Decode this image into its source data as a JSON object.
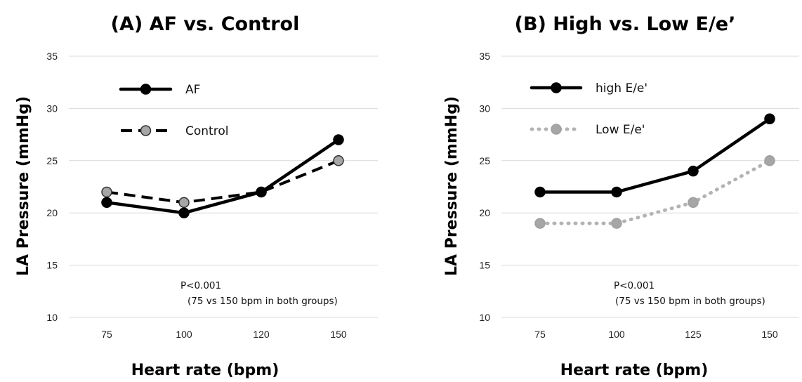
{
  "chart_data": [
    {
      "type": "line",
      "title": "(A) AF vs. Control",
      "xlabel": "Heart rate (bpm)",
      "ylabel": "LA Pressure (mmHg)",
      "categories": [
        "75",
        "100",
        "120",
        "150"
      ],
      "ylim": [
        10,
        35
      ],
      "yticks": [
        "10",
        "15",
        "20",
        "25",
        "30",
        "35"
      ],
      "grid": true,
      "legend_position": "top-left",
      "series": [
        {
          "name": "AF",
          "values": [
            21,
            20,
            22,
            27
          ],
          "color": "#000000",
          "line_style": "solid",
          "marker_fill": "#000000"
        },
        {
          "name": "Control",
          "values": [
            22,
            21,
            22,
            25
          ],
          "color": "#000000",
          "line_style": "dashed",
          "marker_fill": "#a6a6a6"
        }
      ],
      "annotation": [
        "P<0.001",
        "(75 vs 150 bpm in both groups)"
      ]
    },
    {
      "type": "line",
      "title": "(B) High vs. Low E/e’",
      "xlabel": "Heart rate (bpm)",
      "ylabel": "LA Pressure (mmHg)",
      "categories": [
        "75",
        "100",
        "125",
        "150"
      ],
      "ylim": [
        10,
        35
      ],
      "yticks": [
        "10",
        "15",
        "20",
        "25",
        "30",
        "35"
      ],
      "grid": true,
      "legend_position": "top-left",
      "series": [
        {
          "name": "high E/e'",
          "values": [
            22,
            22,
            24,
            29
          ],
          "color": "#000000",
          "line_style": "solid",
          "marker_fill": "#000000"
        },
        {
          "name": "Low E/e'",
          "values": [
            19,
            19,
            21,
            25
          ],
          "color": "#b3b3b3",
          "line_style": "dotted",
          "marker_fill": "#a6a6a6"
        }
      ],
      "annotation": [
        "P<0.001",
        "(75 vs 150 bpm in both groups)"
      ]
    }
  ]
}
